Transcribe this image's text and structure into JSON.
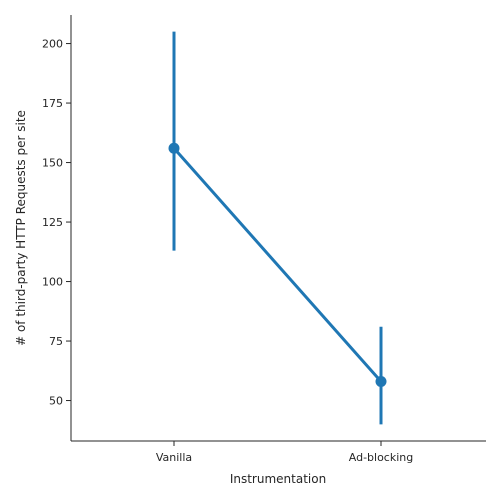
{
  "chart_data": {
    "type": "line",
    "title": "",
    "xlabel": "Instrumentation",
    "ylabel": "# of third-party HTTP Requests per site",
    "categories": [
      "Vanilla",
      "Ad-blocking"
    ],
    "series": [
      {
        "values": [
          156,
          58
        ],
        "ci_low": [
          113,
          40
        ],
        "ci_high": [
          205,
          81
        ]
      }
    ],
    "y_ticks": [
      50,
      75,
      100,
      125,
      150,
      175,
      200
    ],
    "ylim": [
      33,
      212
    ],
    "grid": false,
    "legend": "none",
    "color": "#1f77b4",
    "axis_color": "#262626"
  }
}
